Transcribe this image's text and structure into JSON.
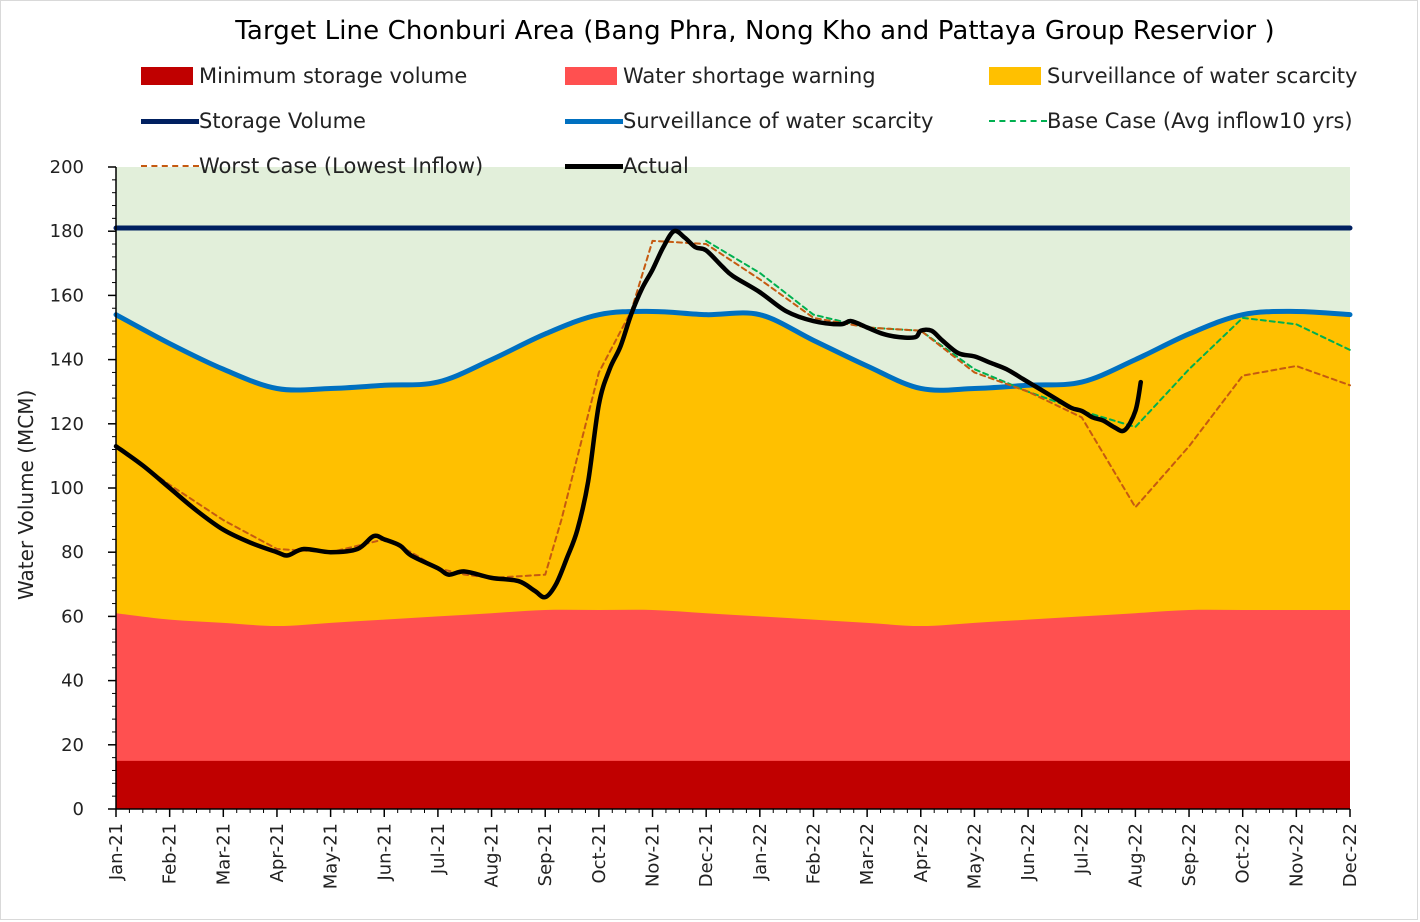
{
  "chart_data": {
    "type": "area",
    "title": "Target Line Chonburi Area (Bang Phra, Nong Kho and Pattaya Group Reservior )",
    "ylabel": "Water Volume (MCM)",
    "xlabel": "",
    "ylim": [
      0,
      200
    ],
    "yticks": [
      "0",
      "20",
      "40",
      "60",
      "80",
      "100",
      "120",
      "140",
      "160",
      "180",
      "200"
    ],
    "categories": [
      "Jan-21",
      "Feb-21",
      "Mar-21",
      "Apr-21",
      "May-21",
      "Jun-21",
      "Jul-21",
      "Aug-21",
      "Sep-21",
      "Oct-21",
      "Nov-21",
      "Dec-21",
      "Jan-22",
      "Feb-22",
      "Mar-22",
      "Apr-22",
      "May-22",
      "Jun-22",
      "Jul-22",
      "Aug-22",
      "Sep-22",
      "Oct-22",
      "Nov-22",
      "Dec-22"
    ],
    "legend_position": "top",
    "background_color": "#e2efda",
    "series": [
      {
        "name": "Minimum storage volume",
        "kind": "area",
        "color": "#c00000",
        "values": [
          15,
          15,
          15,
          15,
          15,
          15,
          15,
          15,
          15,
          15,
          15,
          15,
          15,
          15,
          15,
          15,
          15,
          15,
          15,
          15,
          15,
          15,
          15,
          15
        ]
      },
      {
        "name": "Water shortage warning",
        "kind": "area",
        "color": "#ff5050",
        "values": [
          61,
          59,
          58,
          57,
          58,
          59,
          60,
          61,
          62,
          62,
          62,
          61,
          60,
          59,
          58,
          57,
          58,
          59,
          60,
          61,
          62,
          62,
          62,
          62
        ]
      },
      {
        "name": "Surveillance of water scarcity",
        "kind": "area",
        "color": "#ffc000",
        "values": [
          154,
          145,
          137,
          131,
          131,
          132,
          133,
          140,
          148,
          154,
          155,
          154,
          154,
          146,
          138,
          131,
          131,
          132,
          133,
          140,
          148,
          154,
          155,
          154
        ]
      },
      {
        "name": "Storage Volume",
        "kind": "line",
        "color": "#002060",
        "values": [
          181,
          181,
          181,
          181,
          181,
          181,
          181,
          181,
          181,
          181,
          181,
          181,
          181,
          181,
          181,
          181,
          181,
          181,
          181,
          181,
          181,
          181,
          181,
          181
        ]
      },
      {
        "name": "Surveillance of water scarcity",
        "kind": "line",
        "color": "#0070c0",
        "values": [
          154,
          145,
          137,
          131,
          131,
          132,
          133,
          140,
          148,
          154,
          155,
          154,
          154,
          146,
          138,
          131,
          131,
          132,
          133,
          140,
          148,
          154,
          155,
          154
        ]
      },
      {
        "name": "Base Case (Avg inflow10 yrs)",
        "kind": "dashed",
        "color": "#00b050",
        "x": [
          11,
          12,
          13,
          14,
          15,
          16,
          17,
          18,
          19,
          20,
          21,
          22,
          23
        ],
        "values": [
          177,
          167,
          154,
          150,
          149,
          137,
          130,
          124,
          119,
          137,
          153,
          151,
          143
        ]
      },
      {
        "name": "Worst Case (Lowest Inflow)",
        "kind": "dashed",
        "color": "#c55a11",
        "x": [
          0,
          1,
          2,
          3,
          4,
          5,
          5.5,
          6,
          6.5,
          7,
          8,
          8.3,
          9,
          9.6,
          10,
          11,
          12,
          13,
          14,
          15,
          16,
          17,
          18,
          19,
          20,
          21,
          22,
          23
        ],
        "values": [
          113,
          101,
          90,
          81,
          80,
          84,
          80,
          75,
          73,
          72,
          73,
          90,
          136,
          155,
          177,
          176,
          165,
          153,
          150,
          149,
          136,
          130,
          122,
          94,
          113,
          135,
          138,
          132
        ]
      },
      {
        "name": "Actual",
        "kind": "line",
        "color": "#000000",
        "x": [
          0,
          0.5,
          1,
          1.5,
          2,
          2.5,
          3,
          3.2,
          3.5,
          4,
          4.5,
          4.8,
          5,
          5.3,
          5.5,
          6,
          6.2,
          6.5,
          7,
          7.5,
          7.8,
          8,
          8.2,
          8.4,
          8.6,
          8.8,
          9,
          9.2,
          9.4,
          9.6,
          9.8,
          10,
          10.2,
          10.4,
          10.6,
          10.8,
          11,
          11.3,
          11.5,
          12,
          12.5,
          13,
          13.5,
          13.7,
          14,
          14.3,
          14.6,
          14.9,
          15,
          15.2,
          15.4,
          15.7,
          16,
          16.3,
          16.6,
          16.9,
          17.2,
          17.5,
          17.8,
          18,
          18.2,
          18.4,
          18.6,
          18.8,
          19,
          19.1
        ],
        "values": [
          113,
          107,
          100,
          93,
          87,
          83,
          80,
          79,
          81,
          80,
          81,
          85,
          84,
          82,
          79,
          75,
          73,
          74,
          72,
          71,
          68,
          66,
          70,
          78,
          87,
          102,
          126,
          137,
          144,
          154,
          162,
          168,
          175,
          180,
          178,
          175,
          174,
          169,
          166,
          161,
          155,
          152,
          151,
          152,
          150,
          148,
          147,
          147,
          149,
          149,
          146,
          142,
          141,
          139,
          137,
          134,
          131,
          128,
          125,
          124,
          122,
          121,
          119,
          118,
          124,
          133
        ]
      }
    ]
  }
}
